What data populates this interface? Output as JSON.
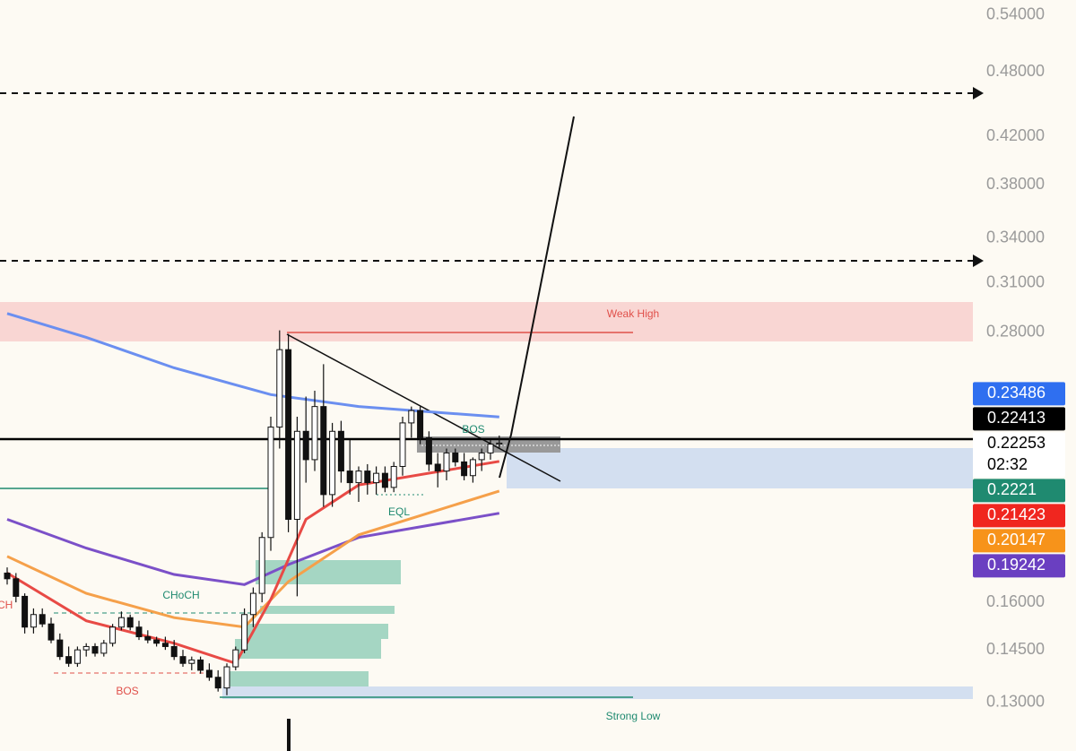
{
  "chart_data": {
    "type": "candlestick",
    "yscale": "log",
    "ylim": [
      0.1176,
      0.557
    ],
    "yticks": [
      {
        "value": 0.54,
        "label": "0.54000"
      },
      {
        "value": 0.48,
        "label": "0.48000"
      },
      {
        "value": 0.42,
        "label": "0.42000"
      },
      {
        "value": 0.38,
        "label": "0.38000"
      },
      {
        "value": 0.34,
        "label": "0.34000"
      },
      {
        "value": 0.31,
        "label": "0.31000"
      },
      {
        "value": 0.28,
        "label": "0.28000"
      },
      {
        "value": 0.16,
        "label": "0.16000"
      },
      {
        "value": 0.145,
        "label": "0.14500"
      },
      {
        "value": 0.13,
        "label": "0.13000"
      }
    ],
    "up_color": "#ffffff",
    "down_color": "#111111",
    "open": [
      0.17,
      0.168,
      0.162,
      0.152,
      0.156,
      0.153,
      0.148,
      0.143,
      0.141,
      0.145,
      0.146,
      0.144,
      0.147,
      0.152,
      0.155,
      0.152,
      0.149,
      0.148,
      0.147,
      0.146,
      0.143,
      0.141,
      0.142,
      0.139,
      0.137,
      0.134,
      0.14,
      0.145,
      0.156,
      0.163,
      0.183,
      0.23,
      0.27,
      0.19,
      0.228,
      0.215,
      0.24,
      0.2,
      0.228,
      0.21,
      0.205,
      0.21,
      0.205,
      0.209,
      0.203,
      0.212,
      0.232,
      0.238,
      0.225,
      0.213,
      0.21,
      0.218,
      0.214,
      0.208,
      0.215,
      0.218,
      0.222
    ],
    "high": [
      0.172,
      0.17,
      0.163,
      0.158,
      0.158,
      0.155,
      0.15,
      0.146,
      0.146,
      0.147,
      0.147,
      0.148,
      0.153,
      0.157,
      0.156,
      0.154,
      0.151,
      0.149,
      0.149,
      0.148,
      0.145,
      0.143,
      0.143,
      0.141,
      0.139,
      0.141,
      0.146,
      0.158,
      0.165,
      0.185,
      0.235,
      0.281,
      0.279,
      0.235,
      0.245,
      0.248,
      0.262,
      0.232,
      0.233,
      0.224,
      0.212,
      0.213,
      0.212,
      0.212,
      0.214,
      0.235,
      0.24,
      0.24,
      0.228,
      0.218,
      0.22,
      0.22,
      0.218,
      0.216,
      0.22,
      0.224,
      0.226
    ],
    "low": [
      0.166,
      0.16,
      0.15,
      0.15,
      0.152,
      0.147,
      0.142,
      0.14,
      0.14,
      0.143,
      0.143,
      0.143,
      0.146,
      0.151,
      0.151,
      0.148,
      0.147,
      0.146,
      0.145,
      0.142,
      0.14,
      0.139,
      0.138,
      0.136,
      0.133,
      0.132,
      0.139,
      0.144,
      0.152,
      0.16,
      0.178,
      0.22,
      0.185,
      0.162,
      0.205,
      0.21,
      0.195,
      0.195,
      0.205,
      0.2,
      0.197,
      0.2,
      0.2,
      0.201,
      0.201,
      0.208,
      0.225,
      0.222,
      0.21,
      0.203,
      0.206,
      0.212,
      0.206,
      0.205,
      0.21,
      0.215,
      0.22
    ],
    "close": [
      0.168,
      0.162,
      0.152,
      0.156,
      0.153,
      0.148,
      0.143,
      0.141,
      0.145,
      0.146,
      0.144,
      0.147,
      0.152,
      0.155,
      0.152,
      0.149,
      0.148,
      0.147,
      0.146,
      0.143,
      0.141,
      0.142,
      0.139,
      0.137,
      0.134,
      0.14,
      0.145,
      0.156,
      0.163,
      0.183,
      0.23,
      0.27,
      0.19,
      0.228,
      0.215,
      0.24,
      0.2,
      0.228,
      0.21,
      0.205,
      0.21,
      0.205,
      0.209,
      0.203,
      0.212,
      0.232,
      0.238,
      0.225,
      0.213,
      0.21,
      0.218,
      0.214,
      0.208,
      0.215,
      0.218,
      0.222,
      0.2225
    ],
    "series": [
      {
        "color": "#6b8ff0",
        "x": [
          0,
          9,
          19,
          30,
          40,
          56
        ],
        "values": [
          0.291,
          0.277,
          0.26,
          0.246,
          0.24,
          0.23486
        ]
      },
      {
        "color": "#7b50c8",
        "x": [
          0,
          9,
          19,
          27,
          32,
          40,
          56
        ],
        "values": [
          0.19,
          0.179,
          0.1695,
          0.166,
          0.173,
          0.183,
          0.19242
        ]
      },
      {
        "color": "#f5a04a",
        "x": [
          0,
          9,
          19,
          27,
          32,
          40,
          56
        ],
        "values": [
          0.176,
          0.163,
          0.155,
          0.152,
          0.167,
          0.184,
          0.20147
        ]
      },
      {
        "color": "#e84a45",
        "x": [
          0,
          9,
          19,
          26,
          30,
          34,
          40,
          56
        ],
        "values": [
          0.17,
          0.154,
          0.147,
          0.141,
          0.161,
          0.19,
          0.204,
          0.21423
        ]
      }
    ],
    "price_tags": [
      {
        "value": 0.23486,
        "color": "#2f6ff0",
        "text_color": "#ffffff"
      },
      {
        "value": 0.22413,
        "color": "#000000",
        "text_color": "#ffffff"
      },
      {
        "value": 0.22253,
        "color": "#ffffff",
        "text_color": "#000000",
        "countdown": "02:32"
      },
      {
        "value": 0.2221,
        "color": "#1f8a70",
        "text_color": "#ffffff"
      },
      {
        "value": 0.21423,
        "color": "#f0261f",
        "text_color": "#ffffff"
      },
      {
        "value": 0.20147,
        "color": "#f7931a",
        "text_color": "#ffffff"
      },
      {
        "value": 0.19242,
        "color": "#6a3fc1",
        "text_color": "#ffffff"
      }
    ],
    "annotations": {
      "weak_high": "Weak High",
      "strong_low": "Strong Low",
      "bos_top": "BOS",
      "eql": "EQL",
      "choch": "CHoCH",
      "ch": "CH",
      "bos_bottom": "BOS"
    }
  }
}
